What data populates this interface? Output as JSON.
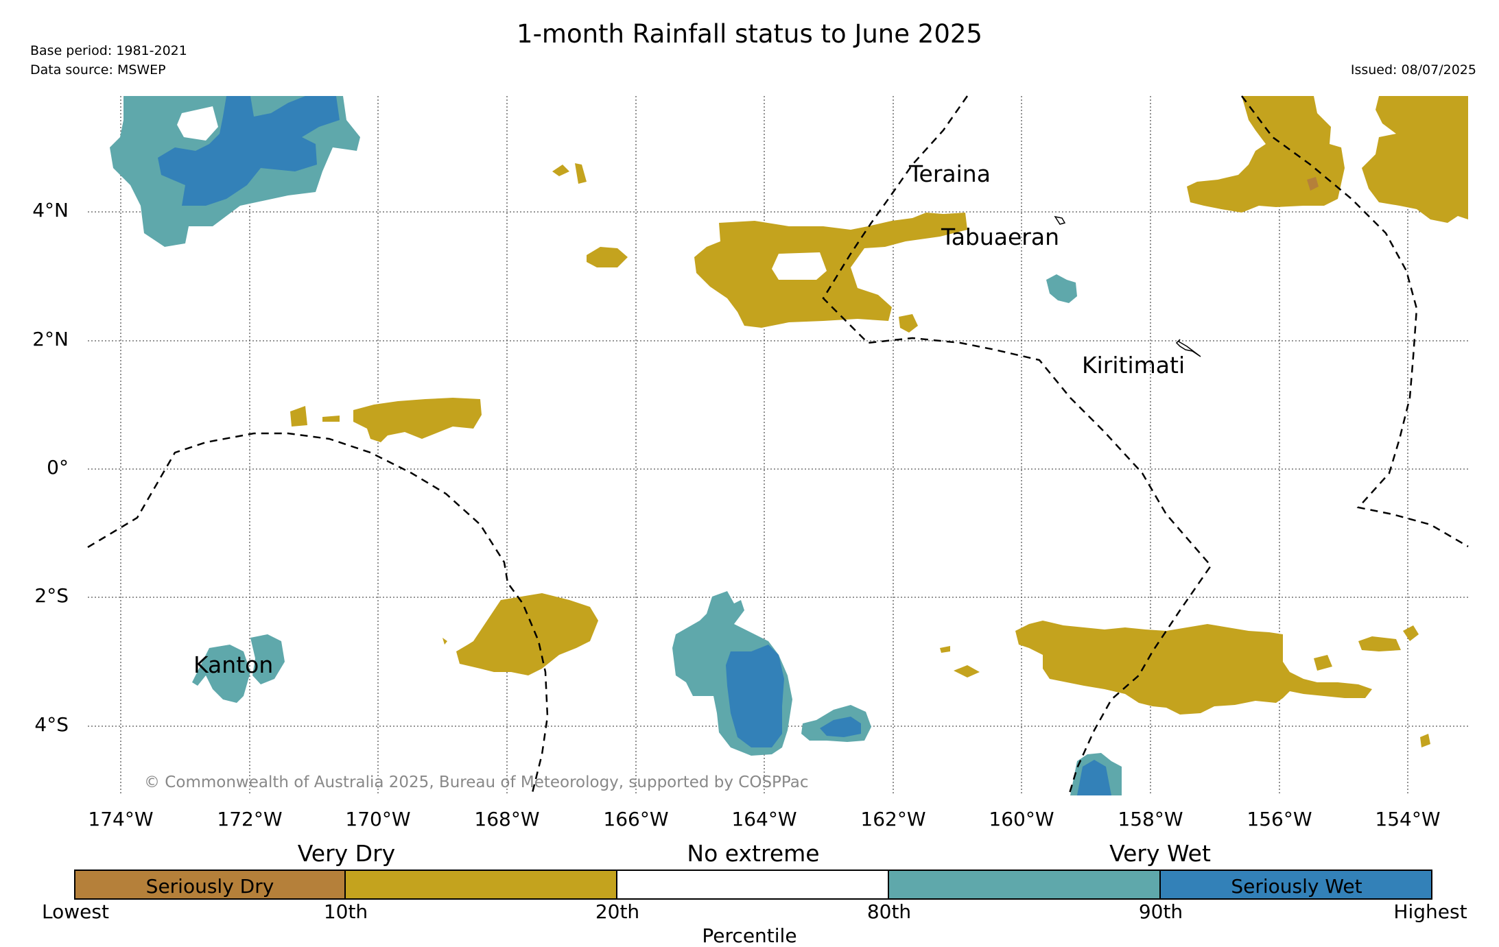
{
  "title": "1-month Rainfall status to June 2025",
  "meta": {
    "base_period": "Base period: 1981-2021",
    "data_source": "Data source: MSWEP",
    "issued": "Issued: 08/07/2025"
  },
  "map": {
    "lon_ticks": [
      "174°W",
      "172°W",
      "170°W",
      "168°W",
      "166°W",
      "164°W",
      "162°W",
      "160°W",
      "158°W",
      "156°W",
      "154°W"
    ],
    "lat_ticks": [
      "4°N",
      "2°N",
      "0°",
      "2°S",
      "4°S"
    ],
    "places": [
      "Teraina",
      "Tabuaeran",
      "Kiritimati",
      "Kanton"
    ],
    "copyright": "© Commonwealth of Australia 2025, Bureau of Meteorology, supported by COSPPac",
    "colors": {
      "seriously_dry": "#b5803a",
      "very_dry": "#c4a31e",
      "no_extreme": "#ffffff",
      "very_wet": "#5fa8ab",
      "seriously_wet": "#3381b8"
    }
  },
  "legend": {
    "categories": [
      "Very Dry",
      "No extreme",
      "Very Wet"
    ],
    "segments": [
      "Seriously Dry",
      "",
      "",
      "",
      "Seriously Wet"
    ],
    "percentiles": [
      "Lowest",
      "10th",
      "20th",
      "80th",
      "90th",
      "Highest"
    ],
    "axis_label": "Percentile"
  }
}
